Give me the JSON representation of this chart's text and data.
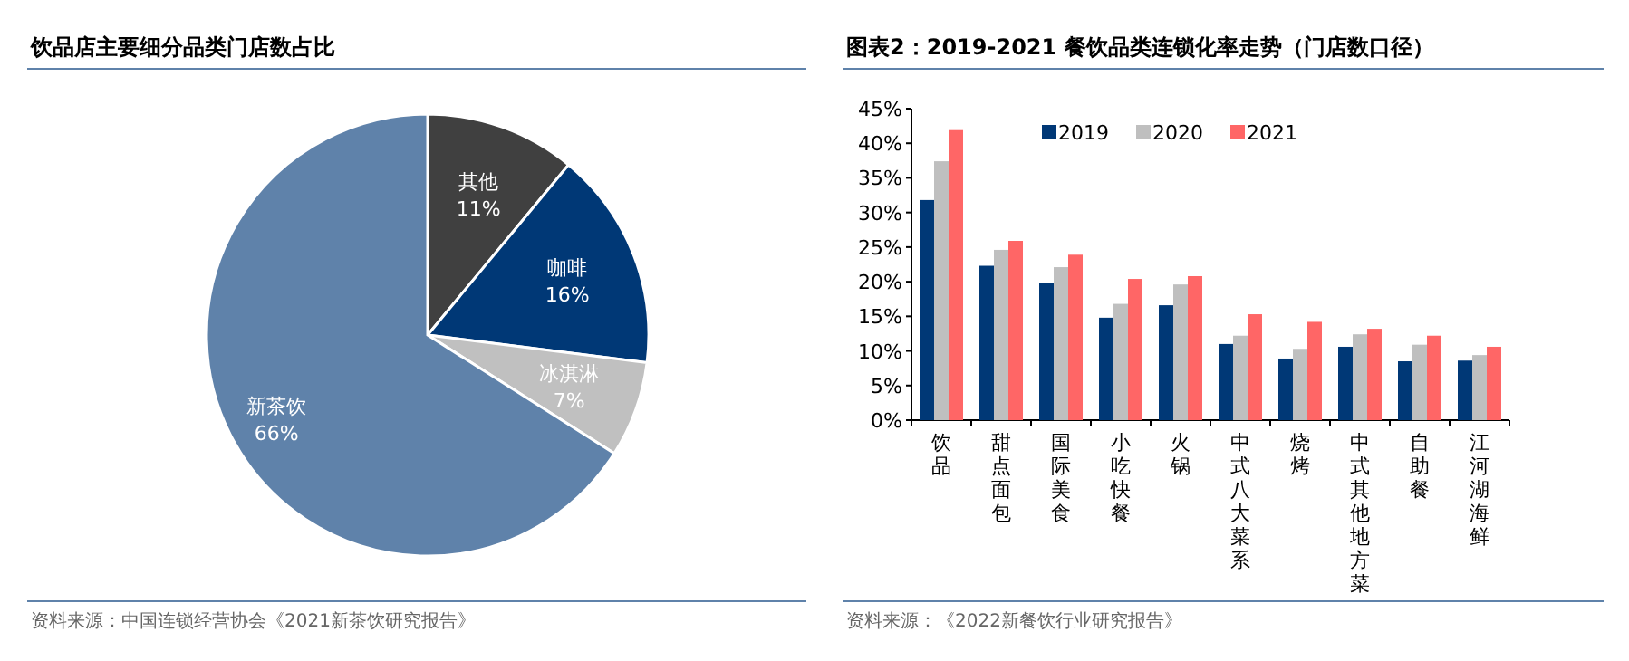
{
  "chart_data": [
    {
      "type": "pie",
      "title": "饮品店主要细分品类门店数占比",
      "categories": [
        "其他",
        "咖啡",
        "冰淇淋",
        "新茶饮"
      ],
      "values": [
        11,
        16,
        7,
        66
      ],
      "colors": [
        "#404040",
        "#003876",
        "#c0c0c0",
        "#5f82aa"
      ],
      "value_labels": [
        "11%",
        "16%",
        "7%",
        "66%"
      ],
      "annotations": [
        "资料来源：中国连锁经营协会《2021新茶饮研究报告》"
      ]
    },
    {
      "type": "bar",
      "title": "图表2：2019-2021 餐饮品类连锁化率走势（门店数口径）",
      "categories": [
        "饮品",
        "甜点面包",
        "国际美食",
        "小吃快餐",
        "火锅",
        "中式八大菜系",
        "烧烤",
        "中式其他地方菜",
        "自助餐",
        "江河湖海鲜"
      ],
      "series": [
        {
          "name": "2019",
          "color": "#003876",
          "values": [
            31.8,
            22.3,
            19.8,
            14.8,
            16.6,
            11.0,
            8.9,
            10.6,
            8.5,
            8.6
          ]
        },
        {
          "name": "2020",
          "color": "#bfbfbf",
          "values": [
            37.4,
            24.6,
            22.1,
            16.8,
            19.6,
            12.2,
            10.3,
            12.4,
            10.9,
            9.4
          ]
        },
        {
          "name": "2021",
          "color": "#ff6666",
          "values": [
            41.9,
            25.9,
            23.9,
            20.4,
            20.8,
            15.3,
            14.2,
            13.2,
            12.2,
            10.6
          ]
        }
      ],
      "ylim": [
        0,
        45
      ],
      "yticks": [
        {
          "value": 0,
          "label": "0%"
        },
        {
          "value": 5,
          "label": "5%"
        },
        {
          "value": 10,
          "label": "10%"
        },
        {
          "value": 15,
          "label": "15%"
        },
        {
          "value": 20,
          "label": "20%"
        },
        {
          "value": 25,
          "label": "25%"
        },
        {
          "value": 30,
          "label": "30%"
        },
        {
          "value": 35,
          "label": "35%"
        },
        {
          "value": 40,
          "label": "40%"
        },
        {
          "value": 45,
          "label": "45%"
        }
      ],
      "legend": "top",
      "annotations": [
        "资料来源：《2022新餐饮行业研究报告》"
      ]
    }
  ]
}
